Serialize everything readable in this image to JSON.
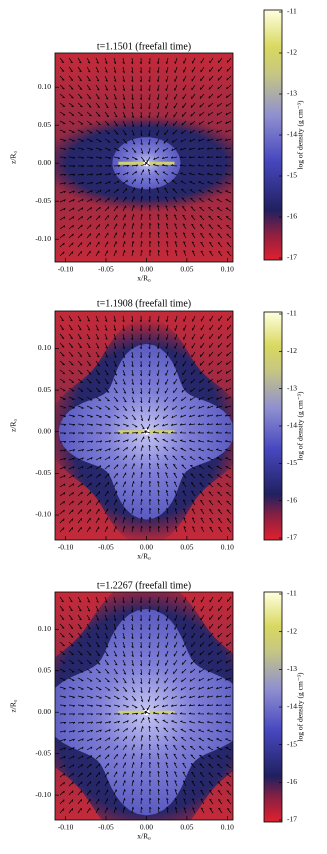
{
  "chart_data": [
    {
      "type": "heatmap",
      "title": "t=1.1501 (freefall time)",
      "xlabel": "x/R₀",
      "ylabel": "z/R₀",
      "xlim": [
        -0.113,
        0.107
      ],
      "ylim": [
        -0.13,
        0.145
      ],
      "xticks": [
        {
          "value": -0.1,
          "label": "-0.10"
        },
        {
          "value": -0.05,
          "label": "-0.05"
        },
        {
          "value": 0,
          "label": "0.00"
        },
        {
          "value": 0.05,
          "label": "0.05"
        },
        {
          "value": 0.1,
          "label": "0.10"
        }
      ],
      "yticks": [
        {
          "value": -0.1,
          "label": "-0.10"
        },
        {
          "value": -0.05,
          "label": "-0.05"
        },
        {
          "value": 0,
          "label": "0.00"
        },
        {
          "value": 0.05,
          "label": "0.05"
        },
        {
          "value": 0.1,
          "label": "0.10"
        }
      ],
      "colorbar": {
        "label": "log of density (g cm⁻³)",
        "lim": [
          -17,
          -11
        ],
        "ticks": [
          -11,
          -12,
          -13,
          -14,
          -15,
          -16,
          -17
        ]
      }
    },
    {
      "type": "heatmap",
      "title": "t=1.1908 (freefall time)",
      "xlabel": "x/R₀",
      "ylabel": "z/R₀",
      "xlim": [
        -0.113,
        0.107
      ],
      "ylim": [
        -0.13,
        0.145
      ],
      "xticks": [
        {
          "value": -0.1,
          "label": "-0.10"
        },
        {
          "value": -0.05,
          "label": "-0.05"
        },
        {
          "value": 0,
          "label": "0.00"
        },
        {
          "value": 0.05,
          "label": "0.05"
        },
        {
          "value": 0.1,
          "label": "0.10"
        }
      ],
      "yticks": [
        {
          "value": -0.1,
          "label": "-0.10"
        },
        {
          "value": -0.05,
          "label": "-0.05"
        },
        {
          "value": 0,
          "label": "0.00"
        },
        {
          "value": 0.05,
          "label": "0.05"
        },
        {
          "value": 0.1,
          "label": "0.10"
        }
      ],
      "colorbar": {
        "label": "log of density (g cm⁻³)",
        "lim": [
          -17,
          -11
        ],
        "ticks": [
          -11,
          -12,
          -13,
          -14,
          -15,
          -16,
          -17
        ]
      }
    },
    {
      "type": "heatmap",
      "title": "t=1.2267 (freefall time)",
      "xlabel": "x/R₀",
      "ylabel": "z/R₀",
      "xlim": [
        -0.113,
        0.107
      ],
      "ylim": [
        -0.13,
        0.145
      ],
      "xticks": [
        {
          "value": -0.1,
          "label": "-0.10"
        },
        {
          "value": -0.05,
          "label": "-0.05"
        },
        {
          "value": 0,
          "label": "0.00"
        },
        {
          "value": 0.05,
          "label": "0.05"
        },
        {
          "value": 0.1,
          "label": "0.10"
        }
      ],
      "yticks": [
        {
          "value": -0.1,
          "label": "-0.10"
        },
        {
          "value": -0.05,
          "label": "-0.05"
        },
        {
          "value": 0,
          "label": "0.00"
        },
        {
          "value": 0.05,
          "label": "0.05"
        },
        {
          "value": 0.1,
          "label": "0.10"
        }
      ],
      "colorbar": {
        "label": "log of density (g cm⁻³)",
        "lim": [
          -17,
          -11
        ],
        "ticks": [
          -11,
          -12,
          -13,
          -14,
          -15,
          -16,
          -17
        ]
      }
    }
  ]
}
